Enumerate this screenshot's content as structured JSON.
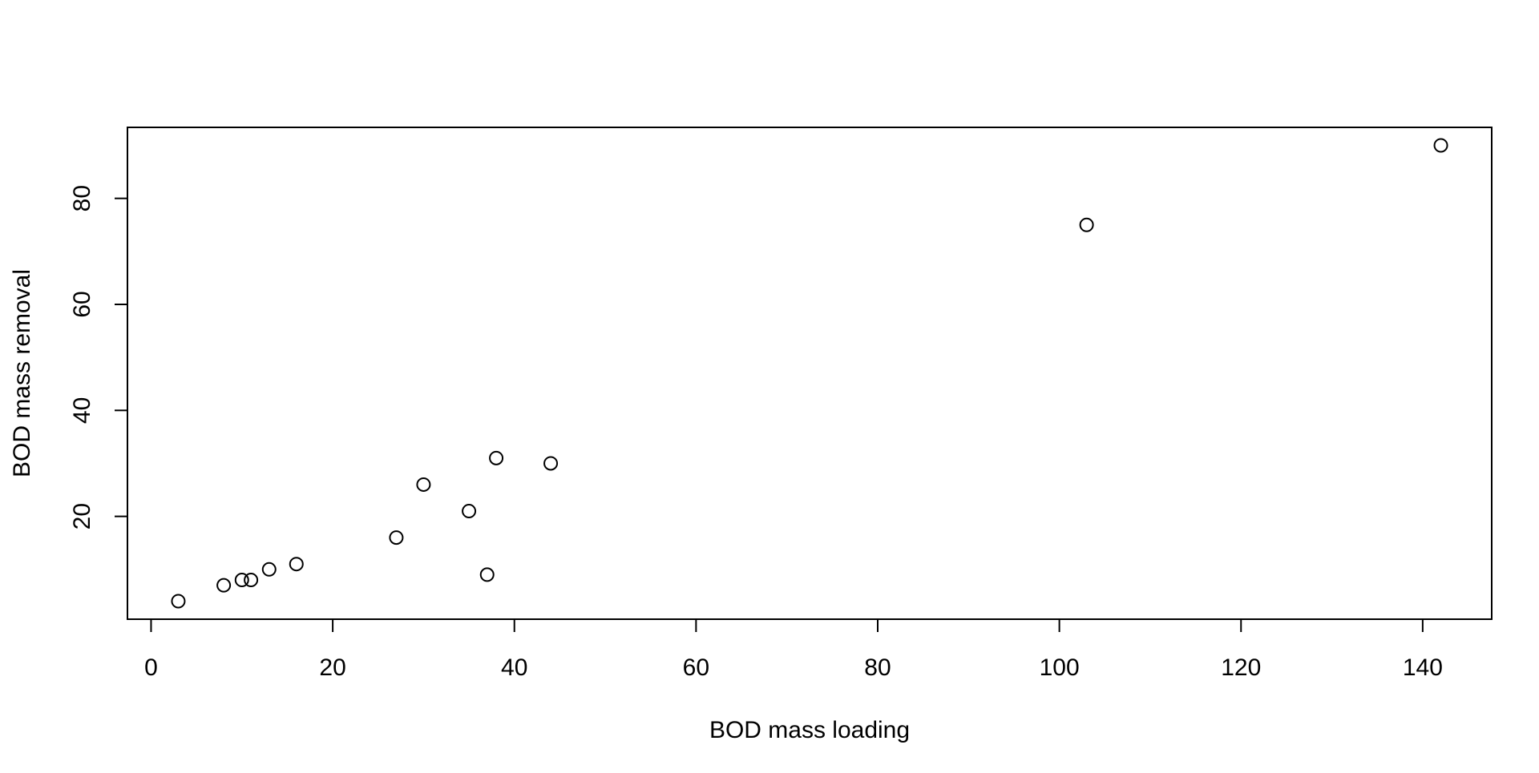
{
  "chart_data": {
    "type": "scatter",
    "title": "",
    "xlabel": "BOD mass loading",
    "ylabel": "BOD mass removal",
    "xlim": [
      -2.6,
      147.6
    ],
    "ylim": [
      0.6,
      93.4
    ],
    "xticks": [
      0,
      20,
      40,
      60,
      80,
      100,
      120,
      140
    ],
    "yticks": [
      20,
      40,
      60,
      80
    ],
    "grid": false,
    "legend": "none",
    "marker": "open-circle",
    "series": [
      {
        "x": [
          3,
          8,
          10,
          11,
          13,
          16,
          27,
          30,
          35,
          37,
          38,
          44,
          103,
          142
        ],
        "y": [
          4,
          7,
          8,
          8,
          10,
          11,
          16,
          26,
          21,
          9,
          31,
          30,
          75,
          90
        ]
      }
    ]
  }
}
